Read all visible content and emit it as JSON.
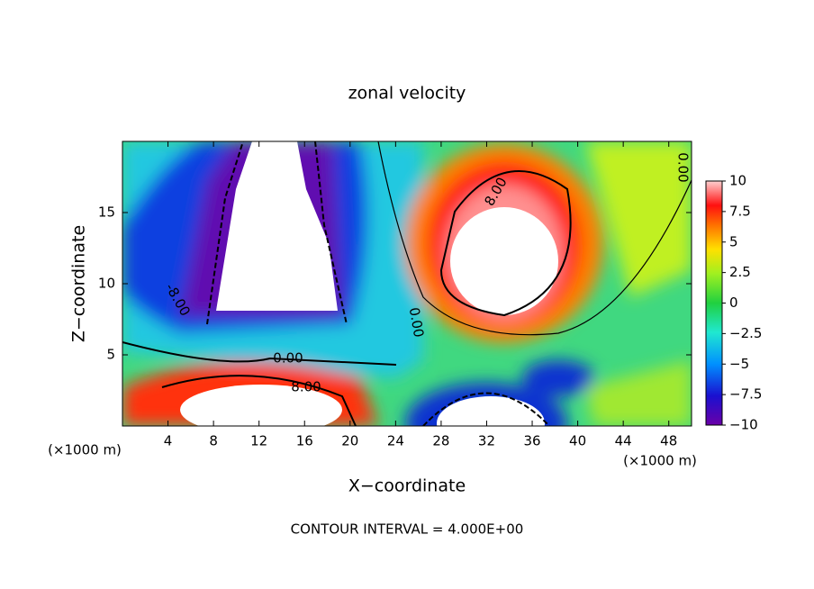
{
  "chart_data": {
    "type": "contour",
    "title": "zonal velocity",
    "xlabel": "X−coordinate",
    "ylabel": "Z−coordinate",
    "x_unit": "(×1000 m)",
    "footer": "CONTOUR INTERVAL = 4.000E+00",
    "xlim": [
      0,
      50
    ],
    "xticks": [
      4,
      8,
      12,
      16,
      20,
      24,
      28,
      32,
      36,
      40,
      44,
      48
    ],
    "ylim": [
      0,
      20
    ],
    "yticks": [
      5,
      10,
      15
    ],
    "clim": [
      -10,
      10
    ],
    "cticks": [
      10,
      7.5,
      5,
      2.5,
      0,
      {
        "value": -2.5,
        "label": "−2.5"
      },
      {
        "value": -5,
        "label": "−5"
      },
      {
        "value": -7.5,
        "label": "−7.5"
      },
      {
        "value": -10,
        "label": "−10"
      }
    ],
    "contour_labels": [
      "8.00",
      "-8.00",
      "0.00",
      "0.00",
      "8.00",
      "0.00"
    ]
  }
}
